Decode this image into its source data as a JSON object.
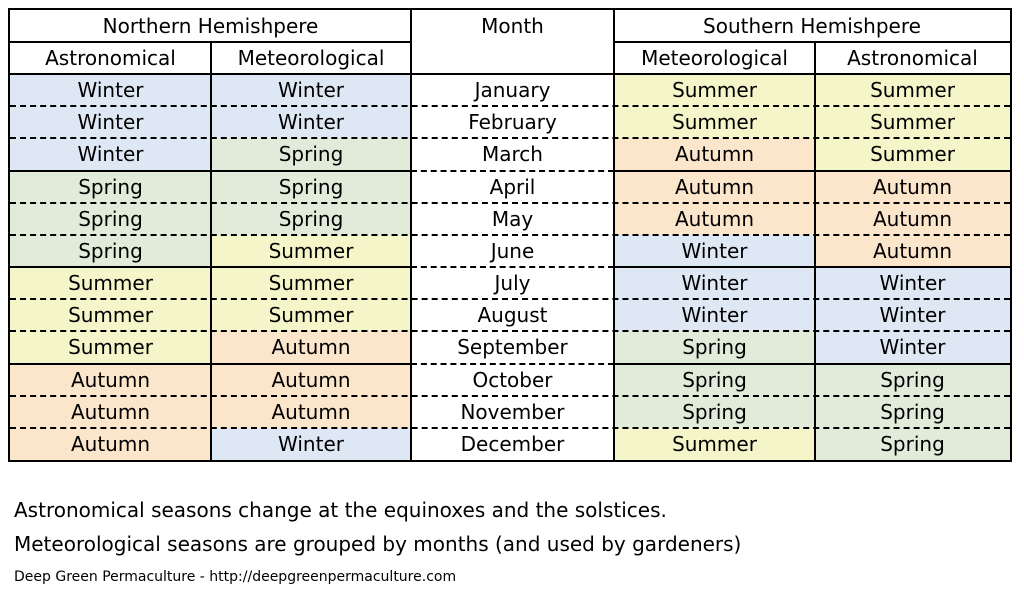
{
  "header": {
    "northern": "Northern Hemishpere",
    "month": "Month",
    "southern": "Southern Hemishpere",
    "astronomical": "Astronomical",
    "meteorological": "Meteorological"
  },
  "rows": [
    {
      "month": "January",
      "n_astro": "Winter",
      "n_meteo": "Winter",
      "s_meteo": "Summer",
      "s_astro": "Summer"
    },
    {
      "month": "February",
      "n_astro": "Winter",
      "n_meteo": "Winter",
      "s_meteo": "Summer",
      "s_astro": "Summer"
    },
    {
      "month": "March",
      "n_astro": "Winter",
      "n_meteo": "Spring",
      "s_meteo": "Autumn",
      "s_astro": "Summer"
    },
    {
      "month": "April",
      "n_astro": "Spring",
      "n_meteo": "Spring",
      "s_meteo": "Autumn",
      "s_astro": "Autumn"
    },
    {
      "month": "May",
      "n_astro": "Spring",
      "n_meteo": "Spring",
      "s_meteo": "Autumn",
      "s_astro": "Autumn"
    },
    {
      "month": "June",
      "n_astro": "Spring",
      "n_meteo": "Summer",
      "s_meteo": "Winter",
      "s_astro": "Autumn"
    },
    {
      "month": "July",
      "n_astro": "Summer",
      "n_meteo": "Summer",
      "s_meteo": "Winter",
      "s_astro": "Winter"
    },
    {
      "month": "August",
      "n_astro": "Summer",
      "n_meteo": "Summer",
      "s_meteo": "Winter",
      "s_astro": "Winter"
    },
    {
      "month": "September",
      "n_astro": "Summer",
      "n_meteo": "Autumn",
      "s_meteo": "Spring",
      "s_astro": "Winter"
    },
    {
      "month": "October",
      "n_astro": "Autumn",
      "n_meteo": "Autumn",
      "s_meteo": "Spring",
      "s_astro": "Spring"
    },
    {
      "month": "November",
      "n_astro": "Autumn",
      "n_meteo": "Autumn",
      "s_meteo": "Spring",
      "s_astro": "Spring"
    },
    {
      "month": "December",
      "n_astro": "Autumn",
      "n_meteo": "Winter",
      "s_meteo": "Summer",
      "s_astro": "Spring"
    }
  ],
  "colors": {
    "Winter": "#dde8f4",
    "Spring": "#e0ebda",
    "Summer": "#f4f6c9",
    "Autumn": "#fbe6cc"
  },
  "notes": [
    "Astronomical seasons change at the equinoxes and the solstices.",
    "Meteorological seasons are grouped by months (and used by gardeners)"
  ],
  "credit": "Deep Green Permaculture -  http://deepgreenpermaculture.com"
}
